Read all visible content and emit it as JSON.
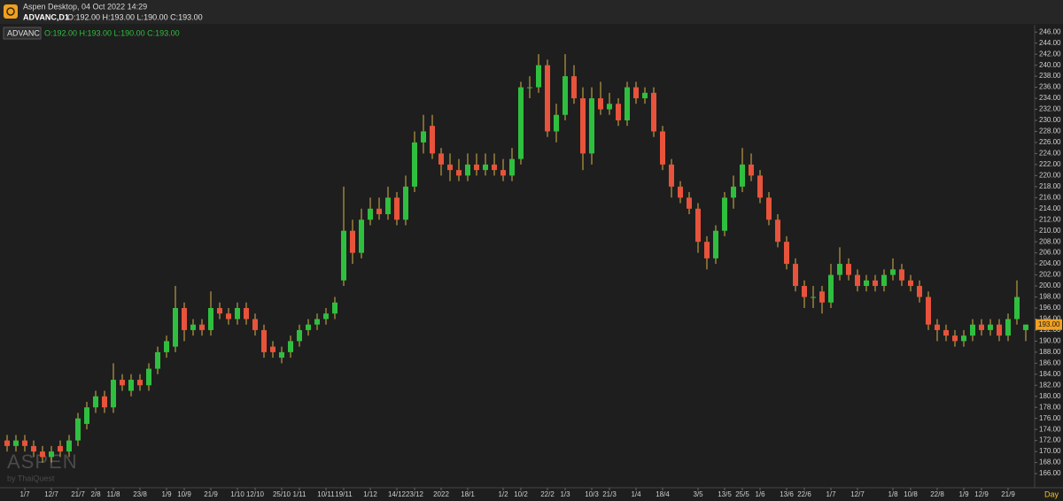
{
  "app_title": "Aspen Desktop, 04 Oct 2022 14:29",
  "chart_data": {
    "type": "candlestick",
    "symbol": "ADVANC,D1",
    "ohlc_header": "O:192.00 H:193.00 L:190.00 C:193.00",
    "legend_symbol": "ADVANC",
    "legend_ohlc": "O:192.00 H:193.00 L:190.00 C:193.00",
    "watermark": "ASPEN",
    "watermark_sub": "by ThaiQuest",
    "x_unit": "Day",
    "grid": false,
    "up_color": "#2fbf3f",
    "down_color": "#e8533b",
    "wick_color": "#d8b24a",
    "last": {
      "value": 193,
      "label": "193.00"
    },
    "categories": [
      null,
      null,
      "1/7",
      null,
      null,
      "12/7",
      null,
      null,
      "21/7",
      null,
      "2/8",
      null,
      "11/8",
      null,
      null,
      "23/8",
      null,
      null,
      "1/9",
      null,
      "10/9",
      null,
      null,
      "21/9",
      null,
      null,
      "1/10",
      null,
      "12/10",
      null,
      null,
      "25/10",
      null,
      "1/11",
      null,
      null,
      "10/11",
      null,
      "19/11",
      null,
      null,
      "1/12",
      null,
      null,
      "14/12",
      null,
      "23/12",
      null,
      null,
      "2022",
      null,
      null,
      "18/1",
      null,
      null,
      null,
      "1/2",
      null,
      "10/2",
      null,
      null,
      "22/2",
      null,
      "1/3",
      null,
      null,
      "10/3",
      null,
      "21/3",
      null,
      null,
      "1/4",
      null,
      null,
      "18/4",
      null,
      null,
      null,
      "3/5",
      null,
      null,
      "13/5",
      null,
      "25/5",
      null,
      "1/6",
      null,
      null,
      "13/6",
      null,
      "22/6",
      null,
      null,
      "1/7",
      null,
      null,
      "12/7",
      null,
      null,
      null,
      "1/8",
      null,
      "10/8",
      null,
      null,
      "22/8",
      null,
      null,
      "1/9",
      null,
      "12/9",
      null,
      null,
      "21/9",
      null,
      null
    ],
    "open": [
      172,
      171,
      172,
      171,
      170,
      169,
      171,
      170,
      172,
      175,
      178,
      180,
      178,
      183,
      181,
      183,
      182,
      185,
      188,
      189,
      196,
      192,
      193,
      192,
      196,
      195,
      194,
      196,
      194,
      192,
      189,
      187,
      188,
      190,
      192,
      193,
      194,
      195,
      201,
      210,
      206,
      212,
      214,
      213,
      216,
      212,
      218,
      226,
      229,
      224,
      222,
      221,
      220,
      222,
      221,
      222,
      221,
      220,
      223,
      236,
      236,
      240,
      228,
      231,
      238,
      234,
      224,
      234,
      232,
      233,
      230,
      236,
      234,
      235,
      228,
      222,
      218,
      216,
      214,
      208,
      205,
      210,
      216,
      218,
      222,
      220,
      216,
      212,
      208,
      204,
      200,
      198,
      199,
      197,
      202,
      204,
      202,
      200,
      201,
      200,
      202,
      203,
      201,
      200,
      198,
      193,
      192,
      191,
      190,
      191,
      193,
      192,
      193,
      191,
      194,
      192
    ],
    "high": [
      173,
      173,
      173,
      172,
      171,
      171,
      172,
      173,
      177,
      179,
      181,
      181,
      186,
      184,
      184,
      184,
      186,
      189,
      191,
      200,
      197,
      194,
      194,
      199,
      197,
      196,
      197,
      197,
      195,
      193,
      190,
      189,
      191,
      193,
      194,
      195,
      196,
      198,
      218,
      212,
      214,
      216,
      216,
      218,
      217,
      220,
      228,
      231,
      231,
      225,
      224,
      223,
      224,
      224,
      224,
      224,
      223,
      225,
      237,
      238,
      242,
      241,
      233,
      242,
      240,
      236,
      236,
      237,
      235,
      234,
      237,
      237,
      236,
      236,
      229,
      223,
      219,
      217,
      215,
      209,
      211,
      217,
      220,
      225,
      224,
      221,
      217,
      213,
      209,
      205,
      201,
      200,
      200,
      204,
      207,
      205,
      203,
      202,
      202,
      203,
      205,
      204,
      202,
      201,
      199,
      194,
      193,
      192,
      192,
      194,
      194,
      194,
      194,
      195,
      201,
      193
    ],
    "low": [
      170,
      170,
      170,
      169,
      168,
      168,
      169,
      169,
      171,
      174,
      177,
      177,
      177,
      181,
      180,
      181,
      181,
      184,
      187,
      188,
      190,
      191,
      191,
      191,
      194,
      193,
      193,
      193,
      191,
      187,
      187,
      186,
      187,
      189,
      191,
      192,
      193,
      194,
      200,
      204,
      205,
      211,
      212,
      212,
      211,
      211,
      217,
      224,
      223,
      220,
      219,
      219,
      219,
      220,
      220,
      220,
      219,
      219,
      222,
      234,
      235,
      227,
      226,
      230,
      233,
      221,
      222,
      231,
      231,
      229,
      229,
      233,
      233,
      227,
      221,
      216,
      215,
      213,
      206,
      203,
      204,
      209,
      214,
      217,
      219,
      215,
      211,
      207,
      203,
      199,
      196,
      196,
      195,
      196,
      201,
      201,
      199,
      199,
      199,
      199,
      201,
      200,
      199,
      197,
      192,
      190,
      190,
      189,
      189,
      190,
      191,
      191,
      190,
      190,
      193,
      190
    ],
    "close": [
      171,
      172,
      171,
      170,
      169,
      170,
      170,
      172,
      176,
      178,
      180,
      178,
      183,
      182,
      183,
      182,
      185,
      188,
      190,
      196,
      192,
      193,
      192,
      196,
      195,
      194,
      196,
      194,
      192,
      188,
      188,
      188,
      190,
      192,
      193,
      194,
      195,
      197,
      210,
      206,
      212,
      214,
      213,
      216,
      212,
      218,
      226,
      228,
      224,
      222,
      221,
      220,
      222,
      221,
      222,
      221,
      220,
      223,
      236,
      236,
      240,
      228,
      231,
      238,
      234,
      224,
      234,
      232,
      233,
      230,
      236,
      234,
      235,
      228,
      222,
      218,
      216,
      214,
      208,
      205,
      210,
      216,
      218,
      222,
      220,
      216,
      212,
      208,
      204,
      200,
      198,
      198,
      197,
      202,
      204,
      202,
      200,
      201,
      200,
      202,
      203,
      201,
      200,
      198,
      193,
      192,
      191,
      190,
      191,
      193,
      192,
      193,
      191,
      194,
      198,
      193
    ],
    "ylim": [
      163.6,
      247
    ],
    "yticks": [
      {
        "value": 166,
        "label": "166.00"
      },
      {
        "value": 168,
        "label": "168.00"
      },
      {
        "value": 170,
        "label": "170.00"
      },
      {
        "value": 172,
        "label": "172.00"
      },
      {
        "value": 174,
        "label": "174.00"
      },
      {
        "value": 176,
        "label": "176.00"
      },
      {
        "value": 178,
        "label": "178.00"
      },
      {
        "value": 180,
        "label": "180.00"
      },
      {
        "value": 182,
        "label": "182.00"
      },
      {
        "value": 184,
        "label": "184.00"
      },
      {
        "value": 186,
        "label": "186.00"
      },
      {
        "value": 188,
        "label": "188.00"
      },
      {
        "value": 190,
        "label": "190.00"
      },
      {
        "value": 192,
        "label": "192.00"
      },
      {
        "value": 194,
        "label": "194.00"
      },
      {
        "value": 196,
        "label": "196.00"
      },
      {
        "value": 198,
        "label": "198.00"
      },
      {
        "value": 200,
        "label": "200.00"
      },
      {
        "value": 202,
        "label": "202.00"
      },
      {
        "value": 204,
        "label": "204.00"
      },
      {
        "value": 206,
        "label": "206.00"
      },
      {
        "value": 208,
        "label": "208.00"
      },
      {
        "value": 210,
        "label": "210.00"
      },
      {
        "value": 212,
        "label": "212.00"
      },
      {
        "value": 214,
        "label": "214.00"
      },
      {
        "value": 216,
        "label": "216.00"
      },
      {
        "value": 218,
        "label": "218.00"
      },
      {
        "value": 220,
        "label": "220.00"
      },
      {
        "value": 222,
        "label": "222.00"
      },
      {
        "value": 224,
        "label": "224.00"
      },
      {
        "value": 226,
        "label": "226.00"
      },
      {
        "value": 228,
        "label": "228.00"
      },
      {
        "value": 230,
        "label": "230.00"
      },
      {
        "value": 232,
        "label": "232.00"
      },
      {
        "value": 234,
        "label": "234.00"
      },
      {
        "value": 236,
        "label": "236.00"
      },
      {
        "value": 238,
        "label": "238.00"
      },
      {
        "value": 240,
        "label": "240.00"
      },
      {
        "value": 242,
        "label": "242.00"
      },
      {
        "value": 244,
        "label": "244.00"
      },
      {
        "value": 246,
        "label": "246.00"
      }
    ]
  }
}
